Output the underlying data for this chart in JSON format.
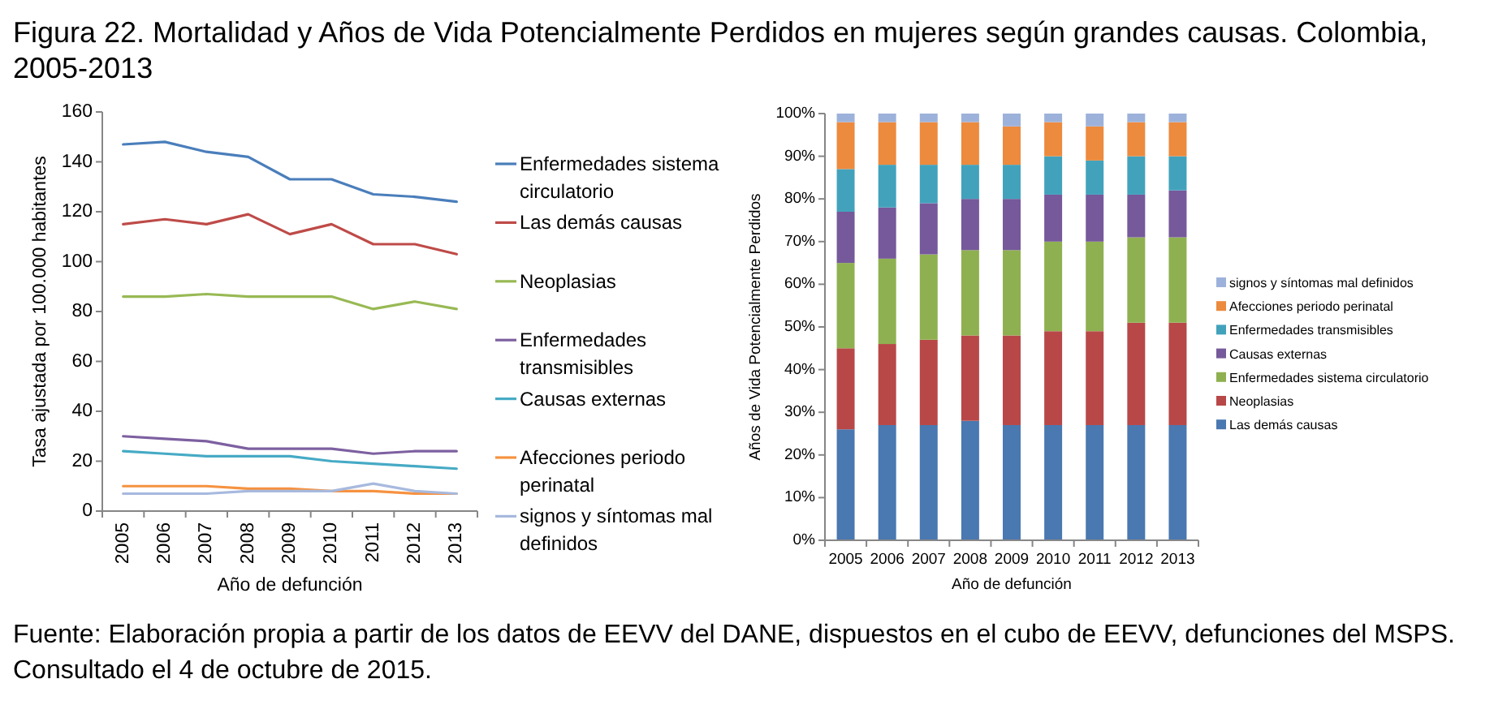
{
  "chart_data": [
    {
      "type": "line",
      "title": "Figura 22. Mortalidad y Años de Vida Potencialmente Perdidos en mujeres según grandes causas. Colombia, 2005-2013",
      "annotations": [
        "Fuente: Elaboración propia a partir de los datos de EEVV del DANE, dispuestos en el cubo de EEVV, defunciones del MSPS. Consultado el 4 de octubre de 2015."
      ],
      "xlabel": "Año de defunción",
      "ylabel": "Tasa ajustada por 100.000 habitantes",
      "categories": [
        "2005",
        "2006",
        "2007",
        "2008",
        "2009",
        "2010",
        "2011",
        "2012",
        "2013"
      ],
      "ylim": [
        0,
        160
      ],
      "yticks": [
        0,
        20,
        40,
        60,
        80,
        100,
        120,
        140,
        160
      ],
      "legend": "right",
      "series": [
        {
          "name": "Enfermedades sistema circulatorio",
          "color": "#4a7ebb",
          "values": [
            147,
            148,
            144,
            142,
            133,
            133,
            127,
            126,
            124
          ]
        },
        {
          "name": "Las demás causas",
          "color": "#be4b48",
          "values": [
            115,
            117,
            115,
            119,
            111,
            115,
            107,
            107,
            103
          ]
        },
        {
          "name": "Neoplasias",
          "color": "#98b954",
          "values": [
            86,
            86,
            87,
            86,
            86,
            86,
            81,
            84,
            81
          ]
        },
        {
          "name": "Enfermedades transmisibles",
          "color": "#7d60a0",
          "values": [
            30,
            29,
            28,
            25,
            25,
            25,
            23,
            24,
            24
          ]
        },
        {
          "name": "Causas externas",
          "color": "#46aac5",
          "values": [
            24,
            23,
            22,
            22,
            22,
            20,
            19,
            18,
            17
          ]
        },
        {
          "name": "Afecciones periodo perinatal",
          "color": "#f69240",
          "values": [
            10,
            10,
            10,
            9,
            9,
            8,
            8,
            7,
            7
          ]
        },
        {
          "name": "signos y síntomas mal definidos",
          "color": "#a7b9de",
          "values": [
            7,
            7,
            7,
            8,
            8,
            8,
            11,
            8,
            7
          ]
        }
      ]
    },
    {
      "type": "bar",
      "stacked": true,
      "xlabel": "Año de defunción",
      "ylabel": "Años de Vida Potencialmente Perdidos",
      "categories": [
        "2005",
        "2006",
        "2007",
        "2008",
        "2009",
        "2010",
        "2011",
        "2012",
        "2013"
      ],
      "ylim": [
        0,
        100
      ],
      "yticks": [
        {
          "value": 0,
          "label": "0%"
        },
        {
          "value": 10,
          "label": "10%"
        },
        {
          "value": 20,
          "label": "20%"
        },
        {
          "value": 30,
          "label": "30%"
        },
        {
          "value": 40,
          "label": "40%"
        },
        {
          "value": 50,
          "label": "50%"
        },
        {
          "value": 60,
          "label": "60%"
        },
        {
          "value": 70,
          "label": "70%"
        },
        {
          "value": 80,
          "label": "80%"
        },
        {
          "value": 90,
          "label": "90%"
        },
        {
          "value": 100,
          "label": "100%"
        }
      ],
      "legend": "right",
      "series": [
        {
          "name": "Las demás causas",
          "color": "#4a78b0",
          "values": [
            26,
            27,
            27,
            28,
            27,
            27,
            27,
            27,
            27
          ]
        },
        {
          "name": "Neoplasias",
          "color": "#b84848",
          "values": [
            19,
            19,
            20,
            20,
            21,
            22,
            22,
            24,
            24
          ]
        },
        {
          "name": "Enfermedades sistema circulatorio",
          "color": "#8fb050",
          "values": [
            20,
            20,
            20,
            20,
            20,
            21,
            21,
            20,
            20
          ]
        },
        {
          "name": "Causas externas",
          "color": "#76599a",
          "values": [
            12,
            12,
            12,
            12,
            12,
            11,
            11,
            10,
            11
          ]
        },
        {
          "name": "Enfermedades transmisibles",
          "color": "#42a2bc",
          "values": [
            10,
            10,
            9,
            8,
            8,
            9,
            8,
            9,
            8
          ]
        },
        {
          "name": "Afecciones periodo perinatal",
          "color": "#ec8a3e",
          "values": [
            11,
            10,
            10,
            10,
            9,
            8,
            8,
            8,
            8
          ]
        },
        {
          "name": "signos y síntomas mal definidos",
          "color": "#9db2da",
          "values": [
            2,
            2,
            2,
            2,
            3,
            2,
            3,
            2,
            2
          ]
        }
      ]
    }
  ]
}
